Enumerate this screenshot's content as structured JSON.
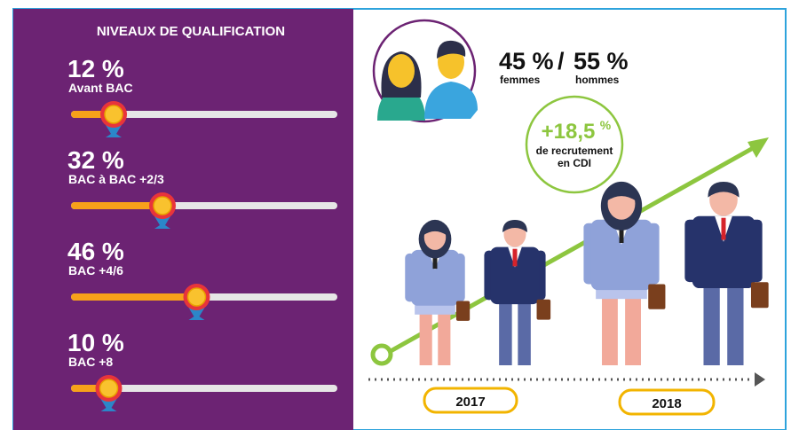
{
  "qualification": {
    "title": "NIVEAUX DE QUALIFICATION",
    "levels": [
      {
        "value": 12,
        "value_label": "12 %",
        "name": "Avant BAC"
      },
      {
        "value": 32,
        "value_label": "32 %",
        "name": "BAC à BAC +2/3"
      },
      {
        "value": 46,
        "value_label": "46 %",
        "name": "BAC +4/6"
      },
      {
        "value": 10,
        "value_label": "10 %",
        "name": "BAC +8"
      }
    ]
  },
  "gender": {
    "women": {
      "value": 45,
      "value_label": "45 %",
      "name": "femmes"
    },
    "separator": "/",
    "men": {
      "value": 55,
      "value_label": "55 %",
      "name": "hommes"
    }
  },
  "growth": {
    "value": 18.5,
    "value_label": "+18,5",
    "unit": "%",
    "line1": "de recrutement",
    "line2": "en CDI"
  },
  "years": [
    "2017",
    "2018"
  ]
}
